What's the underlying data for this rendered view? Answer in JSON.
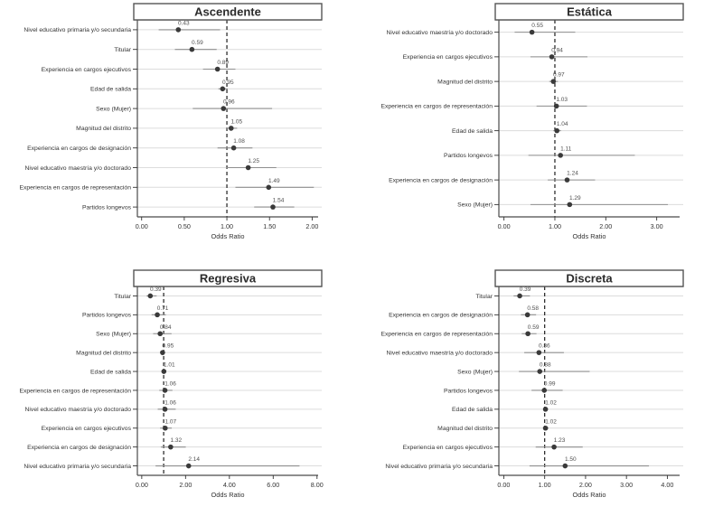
{
  "figure": {
    "background": "#ffffff",
    "colors": {
      "grid": "#dcdcdc",
      "ci_line": "#8f8f8f",
      "point": "#3a3a3a",
      "refline": "#1f1f1f",
      "axis_text": "#333333",
      "value_label": "#4f4f4f",
      "spine": "#4a4a4a",
      "title_text": "#2b2b2b",
      "title_border": "#555555",
      "title_fill": "#ffffff"
    }
  },
  "chart_data": [
    {
      "type": "forest",
      "title": "Ascendente",
      "xlabel": "Odds Ratio",
      "refline": 1.0,
      "xlim": [
        -0.05,
        2.07
      ],
      "xticks": [
        0.0,
        0.5,
        1.0,
        1.5,
        2.0
      ],
      "xtick_labels": [
        "0.00",
        "0.50",
        "1.00",
        "1.50",
        "2.00"
      ],
      "rows": [
        {
          "label": "Nivel educativo primaria y/o secundaria",
          "or": 0.43,
          "lo": 0.2,
          "hi": 0.92
        },
        {
          "label": "Titular",
          "or": 0.59,
          "lo": 0.39,
          "hi": 0.88
        },
        {
          "label": "Experiencia en cargos ejecutivos",
          "or": 0.89,
          "lo": 0.72,
          "hi": 1.1
        },
        {
          "label": "Edad de salida",
          "or": 0.95,
          "lo": 0.9,
          "hi": 1.01
        },
        {
          "label": "Sexo (Mujer)",
          "or": 0.96,
          "lo": 0.6,
          "hi": 1.53
        },
        {
          "label": "Magnitud del distrito",
          "or": 1.05,
          "lo": 0.99,
          "hi": 1.12
        },
        {
          "label": "Experiencia en cargos de designación",
          "or": 1.08,
          "lo": 0.89,
          "hi": 1.3
        },
        {
          "label": "Nivel educativo maestría y/o doctorado",
          "or": 1.25,
          "lo": 0.99,
          "hi": 1.58
        },
        {
          "label": "Experiencia en cargos de representación",
          "or": 1.49,
          "lo": 1.1,
          "hi": 2.02
        },
        {
          "label": "Partidos longevos",
          "or": 1.54,
          "lo": 1.32,
          "hi": 1.79
        }
      ]
    },
    {
      "type": "forest",
      "title": "Estática",
      "xlabel": "Odds Ratio",
      "refline": 1.0,
      "xlim": [
        -0.1,
        3.45
      ],
      "xticks": [
        0.0,
        1.0,
        2.0,
        3.0
      ],
      "xtick_labels": [
        "0.00",
        "1.00",
        "2.00",
        "3.00"
      ],
      "rows": [
        {
          "label": "Nivel educativo maestría y/o doctorado",
          "or": 0.55,
          "lo": 0.21,
          "hi": 1.4
        },
        {
          "label": "Experiencia en cargos ejecutivos",
          "or": 0.94,
          "lo": 0.52,
          "hi": 1.64
        },
        {
          "label": "Magnitud del distrito",
          "or": 0.97,
          "lo": 0.89,
          "hi": 1.06
        },
        {
          "label": "Experiencia en cargos de representación",
          "or": 1.03,
          "lo": 0.64,
          "hi": 1.63
        },
        {
          "label": "Edad de salida",
          "or": 1.04,
          "lo": 0.97,
          "hi": 1.12
        },
        {
          "label": "Partidos longevos",
          "or": 1.11,
          "lo": 0.48,
          "hi": 2.57
        },
        {
          "label": "Experiencia en cargos de designación",
          "or": 1.24,
          "lo": 0.86,
          "hi": 1.79
        },
        {
          "label": "Sexo (Mujer)",
          "or": 1.29,
          "lo": 0.52,
          "hi": 3.22
        }
      ]
    },
    {
      "type": "forest",
      "title": "Regresiva",
      "xlabel": "Odds Ratio",
      "refline": 1.0,
      "xlim": [
        -0.2,
        8.05
      ],
      "xticks": [
        0.0,
        2.0,
        4.0,
        6.0,
        8.0
      ],
      "xtick_labels": [
        "0.00",
        "2.00",
        "4.00",
        "6.00",
        "8.00"
      ],
      "rows": [
        {
          "label": "Titular",
          "or": 0.39,
          "lo": 0.22,
          "hi": 0.68
        },
        {
          "label": "Partidos longevos",
          "or": 0.71,
          "lo": 0.45,
          "hi": 1.1
        },
        {
          "label": "Sexo (Mujer)",
          "or": 0.84,
          "lo": 0.52,
          "hi": 1.36
        },
        {
          "label": "Magnitud del distrito",
          "or": 0.95,
          "lo": 0.85,
          "hi": 1.06
        },
        {
          "label": "Edad de salida",
          "or": 1.01,
          "lo": 0.96,
          "hi": 1.06
        },
        {
          "label": "Experiencia en cargos de representación",
          "or": 1.06,
          "lo": 0.8,
          "hi": 1.4
        },
        {
          "label": "Nivel educativo maestría y/o doctorado",
          "or": 1.06,
          "lo": 0.73,
          "hi": 1.55
        },
        {
          "label": "Experiencia en cargos ejecutivos",
          "or": 1.07,
          "lo": 0.84,
          "hi": 1.37
        },
        {
          "label": "Experiencia en cargos de designación",
          "or": 1.32,
          "lo": 0.87,
          "hi": 2.01
        },
        {
          "label": "Nivel educativo primaria y/o secundaria",
          "or": 2.14,
          "lo": 0.63,
          "hi": 7.2
        }
      ]
    },
    {
      "type": "forest",
      "title": "Discreta",
      "xlabel": "Odds Ratio",
      "refline": 1.0,
      "xlim": [
        -0.12,
        4.3
      ],
      "xticks": [
        0.0,
        1.0,
        2.0,
        3.0,
        4.0
      ],
      "xtick_labels": [
        "0.00",
        "1.00",
        "2.00",
        "3.00",
        "4.00"
      ],
      "rows": [
        {
          "label": "Titular",
          "or": 0.39,
          "lo": 0.24,
          "hi": 0.64
        },
        {
          "label": "Experiencia en cargos de designación",
          "or": 0.58,
          "lo": 0.42,
          "hi": 0.79
        },
        {
          "label": "Experiencia en cargos de representación",
          "or": 0.59,
          "lo": 0.44,
          "hi": 0.8
        },
        {
          "label": "Nivel educativo maestría y/o doctorado",
          "or": 0.86,
          "lo": 0.5,
          "hi": 1.47
        },
        {
          "label": "Sexo (Mujer)",
          "or": 0.88,
          "lo": 0.37,
          "hi": 2.1
        },
        {
          "label": "Partidos longevos",
          "or": 0.99,
          "lo": 0.68,
          "hi": 1.44
        },
        {
          "label": "Edad de salida",
          "or": 1.02,
          "lo": 0.97,
          "hi": 1.08
        },
        {
          "label": "Magnitud del distrito",
          "or": 1.02,
          "lo": 0.96,
          "hi": 1.09
        },
        {
          "label": "Experiencia en cargos ejecutivos",
          "or": 1.23,
          "lo": 0.78,
          "hi": 1.93
        },
        {
          "label": "Nivel educativo primaria y/o secundaria",
          "or": 1.5,
          "lo": 0.63,
          "hi": 3.55
        }
      ]
    }
  ]
}
